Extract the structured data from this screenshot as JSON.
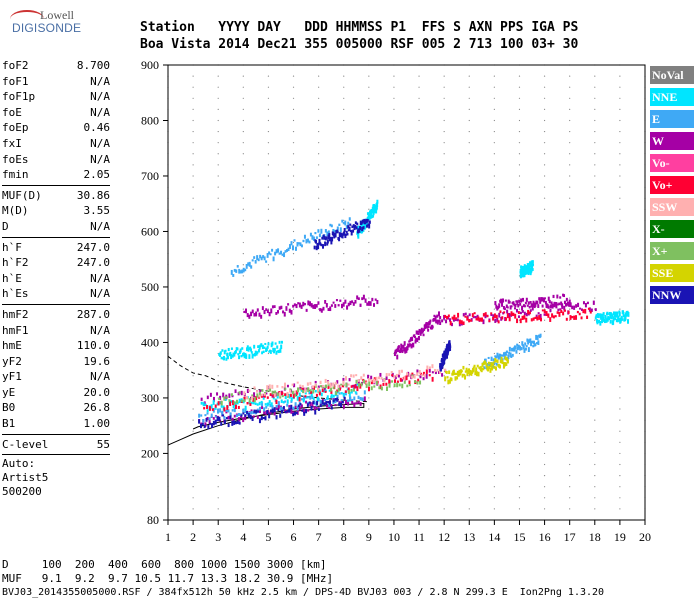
{
  "logo": {
    "line1": "Lowell",
    "line2": "DIGISONDE"
  },
  "header": {
    "row1": "Station   YYYY DAY   DDD HHMMSS P1  FFS S AXN PPS IGA PS",
    "row2": "Boa Vista 2014 Dec21 355 005000 RSF 005 2 713 100 03+ 30"
  },
  "params": [
    {
      "name": "foF2",
      "value": "8.700"
    },
    {
      "name": "foF1",
      "value": "N/A"
    },
    {
      "name": "foF1p",
      "value": "N/A"
    },
    {
      "name": "foE",
      "value": "N/A"
    },
    {
      "name": "foEp",
      "value": "0.46"
    },
    {
      "name": "fxI",
      "value": "N/A"
    },
    {
      "name": "foEs",
      "value": "N/A"
    },
    {
      "name": "fmin",
      "value": "2.05"
    },
    {
      "sep": true
    },
    {
      "name": "MUF(D)",
      "value": "30.86"
    },
    {
      "name": "M(D)",
      "value": "3.55"
    },
    {
      "name": "D",
      "value": "N/A"
    },
    {
      "sep": true
    },
    {
      "name": "h`F",
      "value": "247.0"
    },
    {
      "name": "h`F2",
      "value": "247.0"
    },
    {
      "name": "h`E",
      "value": "N/A"
    },
    {
      "name": "h`Es",
      "value": "N/A"
    },
    {
      "sep": true
    },
    {
      "name": "hmF2",
      "value": "287.0"
    },
    {
      "name": "hmF1",
      "value": "N/A"
    },
    {
      "name": "hmE",
      "value": "110.0"
    },
    {
      "name": "yF2",
      "value": "19.6"
    },
    {
      "name": "yF1",
      "value": "N/A"
    },
    {
      "name": "yE",
      "value": "20.0"
    },
    {
      "name": "B0",
      "value": "26.8"
    },
    {
      "name": "B1",
      "value": "1.00"
    },
    {
      "sep": true
    },
    {
      "name": "C-level",
      "value": "55"
    },
    {
      "sep": true
    }
  ],
  "auto": [
    "Auto:",
    "Artist5",
    "500200"
  ],
  "legend": [
    {
      "label": "NoVal",
      "color": "#808080"
    },
    {
      "label": "NNE",
      "color": "#00e5ff"
    },
    {
      "label": "E",
      "color": "#3fa9f5"
    },
    {
      "label": "W",
      "color": "#a500a5"
    },
    {
      "label": "Vo-",
      "color": "#ff3fa0"
    },
    {
      "label": "Vo+",
      "color": "#ff0033"
    },
    {
      "label": "SSW",
      "color": "#ffb0b0"
    },
    {
      "label": "X-",
      "color": "#007a00"
    },
    {
      "label": "X+",
      "color": "#7fc060"
    },
    {
      "label": "SSE",
      "color": "#d4d400"
    },
    {
      "label": "NNW",
      "color": "#1a14b4"
    }
  ],
  "footer": {
    "d_row": "D     100  200  400  600  800 1000 1500 3000 [km]",
    "muf_row": "MUF   9.1  9.2  9.7 10.5 11.7 13.3 18.2 30.9 [MHz]",
    "file_row": "BVJ03_2014355005000.RSF / 384fx512h 50 kHz 2.5 km / DPS-4D BVJ03 003 / 2.8 N 299.3 E  Ion2Png 1.3.20"
  },
  "chart_data": {
    "type": "scatter",
    "xlim": [
      1,
      20
    ],
    "ylim": [
      80,
      900
    ],
    "xticks": [
      "1",
      "2",
      "3",
      "4",
      "5",
      "6",
      "7",
      "8",
      "9",
      "10",
      "11",
      "12",
      "13",
      "14",
      "15",
      "16",
      "17",
      "18",
      "19",
      "20"
    ],
    "yticks": [
      "80",
      "200",
      "300",
      "400",
      "500",
      "600",
      "700",
      "800",
      "900"
    ],
    "grid": true,
    "profile_upper": [
      [
        1.0,
        375
      ],
      [
        1.5,
        358
      ],
      [
        2.0,
        345
      ],
      [
        2.5,
        340
      ],
      [
        3.0,
        330
      ],
      [
        4.0,
        320
      ],
      [
        5.0,
        312
      ],
      [
        6.0,
        305
      ],
      [
        7.0,
        300
      ],
      [
        8.0,
        296
      ],
      [
        9.0,
        293
      ]
    ],
    "profile_lower": [
      [
        1.0,
        215
      ],
      [
        1.5,
        225
      ],
      [
        2.0,
        235
      ],
      [
        3.0,
        250
      ],
      [
        4.0,
        262
      ],
      [
        5.0,
        272
      ],
      [
        6.0,
        280
      ],
      [
        7.0,
        285
      ],
      [
        8.0,
        288
      ],
      [
        8.8,
        290
      ],
      [
        8.8,
        283
      ],
      [
        8.0,
        283
      ],
      [
        7.0,
        280
      ],
      [
        6.0,
        276
      ],
      [
        5.0,
        270
      ],
      [
        4.0,
        264
      ],
      [
        3.0,
        256
      ],
      [
        2.2,
        248
      ],
      [
        2.0,
        244
      ]
    ],
    "traces": [
      {
        "series": "W",
        "x": [
          2.2,
          8.8
        ],
        "y": [
          262,
          302
        ]
      },
      {
        "series": "W",
        "x": [
          2.3,
          12.0
        ],
        "y": [
          300,
          350
        ]
      },
      {
        "series": "E",
        "x": [
          2.2,
          8.8
        ],
        "y": [
          270,
          310
        ]
      },
      {
        "series": "NNE",
        "x": [
          2.3,
          8.6
        ],
        "y": [
          285,
          318
        ]
      },
      {
        "series": "Vo+",
        "x": [
          2.4,
          11.5
        ],
        "y": [
          285,
          345
        ]
      },
      {
        "series": "NNW",
        "x": [
          2.2,
          8.0
        ],
        "y": [
          255,
          295
        ]
      },
      {
        "series": "X+",
        "x": [
          3.0,
          11.0
        ],
        "y": [
          300,
          335
        ]
      },
      {
        "series": "SSW",
        "x": [
          4.0,
          12.0
        ],
        "y": [
          310,
          355
        ]
      },
      {
        "series": "W",
        "x": [
          11.8,
          18.0
        ],
        "y": [
          440,
          470
        ]
      },
      {
        "series": "Vo+",
        "x": [
          12.0,
          17.8
        ],
        "y": [
          445,
          455
        ]
      },
      {
        "series": "W",
        "x": [
          14.0,
          17.0
        ],
        "y": [
          470,
          480
        ]
      },
      {
        "series": "E",
        "x": [
          13.5,
          15.8
        ],
        "y": [
          360,
          410
        ]
      },
      {
        "series": "SSE",
        "x": [
          12.0,
          14.5
        ],
        "y": [
          340,
          370
        ]
      },
      {
        "series": "E",
        "x": [
          3.5,
          8.2
        ],
        "y": [
          530,
          620
        ]
      },
      {
        "series": "NNE",
        "x": [
          8.5,
          9.3
        ],
        "y": [
          600,
          650
        ]
      },
      {
        "series": "NNW",
        "x": [
          6.8,
          9.0
        ],
        "y": [
          580,
          620
        ]
      },
      {
        "series": "W",
        "x": [
          4.0,
          9.3
        ],
        "y": [
          455,
          480
        ]
      },
      {
        "series": "NNE",
        "x": [
          3.0,
          5.5
        ],
        "y": [
          380,
          395
        ]
      },
      {
        "series": "W",
        "x": [
          10.0,
          11.8
        ],
        "y": [
          380,
          450
        ]
      },
      {
        "series": "NNW",
        "x": [
          11.8,
          12.2
        ],
        "y": [
          360,
          400
        ]
      },
      {
        "series": "NNE",
        "x": [
          15.0,
          15.5
        ],
        "y": [
          530,
          540
        ]
      },
      {
        "series": "NNE",
        "x": [
          18.0,
          19.3
        ],
        "y": [
          445,
          450
        ]
      }
    ]
  }
}
